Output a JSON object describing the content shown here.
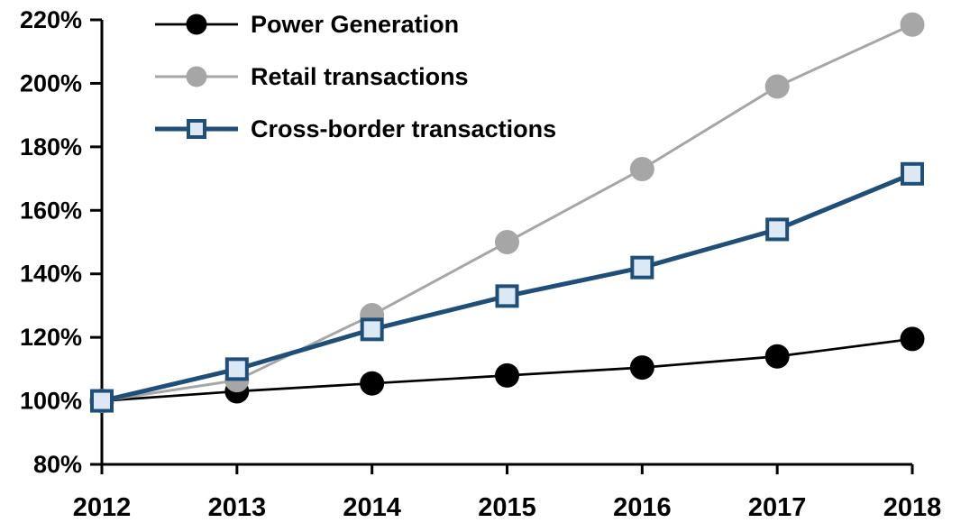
{
  "chart_data": {
    "type": "line",
    "title": "",
    "xlabel": "",
    "ylabel": "",
    "x": [
      2012,
      2013,
      2014,
      2015,
      2016,
      2017,
      2018
    ],
    "x_tick_labels": [
      "2012",
      "2013",
      "2014",
      "2015",
      "2016",
      "2017",
      "2018"
    ],
    "y_tick_labels": [
      "80%",
      "100%",
      "120%",
      "140%",
      "160%",
      "180%",
      "200%",
      "220%"
    ],
    "y_ticks": [
      80,
      100,
      120,
      140,
      160,
      180,
      200,
      220
    ],
    "ylim": [
      80,
      220
    ],
    "grid": false,
    "legend_position": "top-left",
    "axis_color": "#000000",
    "series": [
      {
        "name": "Power Generation",
        "values": [
          100,
          103,
          105.5,
          108,
          110.5,
          114,
          119.5
        ],
        "color": "#000000",
        "marker": "circle",
        "marker_fill": "#000000",
        "line_width": 2.7
      },
      {
        "name": "Retail transactions",
        "values": [
          100,
          106.5,
          127,
          150,
          173,
          199,
          218.5
        ],
        "color": "#a6a6a6",
        "marker": "circle",
        "marker_fill": "#a6a6a6",
        "line_width": 3
      },
      {
        "name": "Cross-border transactions",
        "values": [
          100,
          110,
          122.5,
          133,
          142,
          154,
          171.5
        ],
        "color": "#1f4e79",
        "marker": "square",
        "marker_fill": "#dce9f5",
        "line_width": 5
      }
    ]
  }
}
